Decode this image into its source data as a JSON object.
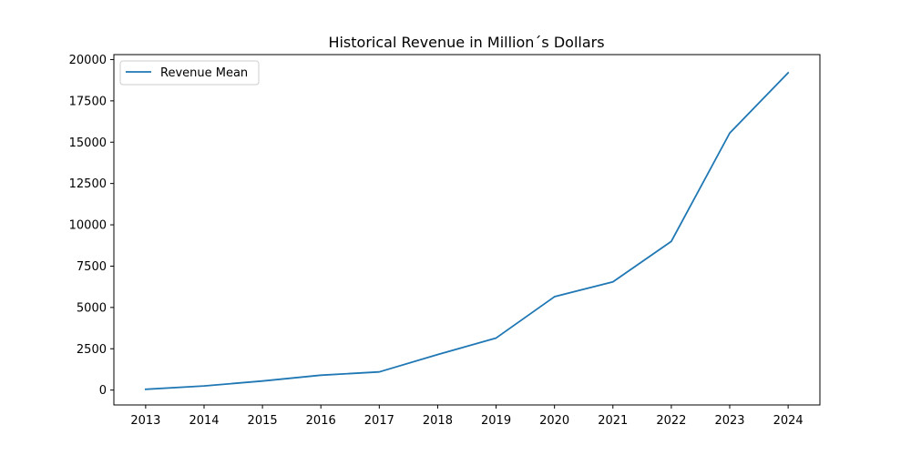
{
  "chart_data": {
    "type": "line",
    "title": "Historical Revenue in Million´s Dollars",
    "xlabel": "",
    "ylabel": "",
    "x": [
      "2013",
      "2014",
      "2015",
      "2016",
      "2017",
      "2018",
      "2019",
      "2020",
      "2021",
      "2022",
      "2023",
      "2024"
    ],
    "series": [
      {
        "name": "Revenue Mean",
        "color": "#1f77b4",
        "values": [
          50,
          250,
          550,
          900,
          1100,
          2150,
          3150,
          5650,
          6550,
          9000,
          15550,
          19200
        ]
      }
    ],
    "yticks": [
      "0",
      "2500",
      "5000",
      "7500",
      "10000",
      "12500",
      "15000",
      "17500",
      "20000"
    ],
    "ylim": [
      -900,
      20300
    ],
    "grid": false,
    "legend_placement": "top-left"
  }
}
